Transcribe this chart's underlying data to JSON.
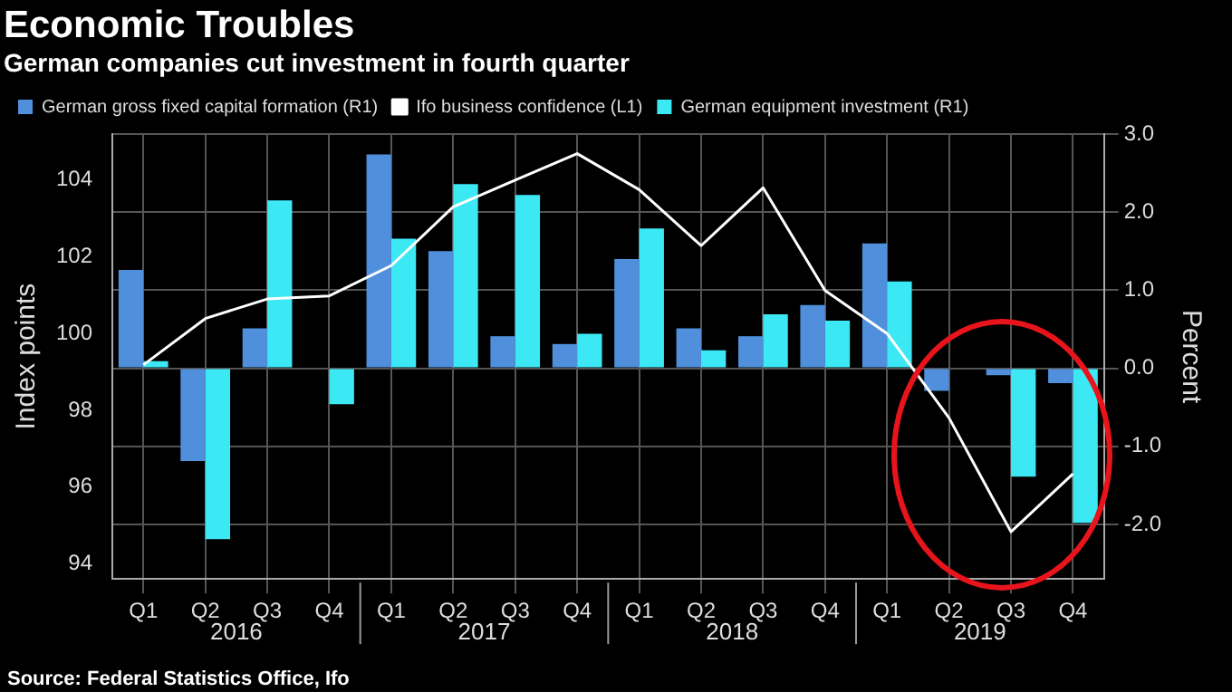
{
  "chart_data": {
    "type": "bar",
    "title": "Economic Troubles",
    "subtitle": "German companies cut investment in fourth quarter",
    "ylabel": "Index points",
    "y2label": "Percent",
    "categories": [
      "Q1",
      "Q2",
      "Q3",
      "Q4",
      "Q1",
      "Q2",
      "Q3",
      "Q4",
      "Q1",
      "Q2",
      "Q3",
      "Q4",
      "Q1",
      "Q2",
      "Q3",
      "Q4"
    ],
    "series": [
      {
        "name": "German gross fixed capital formation (R1)",
        "axis": "y2",
        "color": "#4f8fdc",
        "values": [
          1.26,
          -1.19,
          0.51,
          0.0,
          2.74,
          1.5,
          0.41,
          0.31,
          1.4,
          0.51,
          0.41,
          0.81,
          1.6,
          -0.29,
          -0.09,
          -0.19
        ]
      },
      {
        "name": "Ifo business confidence (L1)",
        "type": "line",
        "axis": "y",
        "color": "#ffffff",
        "values": [
          99.18,
          100.39,
          100.9,
          100.98,
          101.77,
          103.3,
          104.0,
          104.69,
          103.75,
          102.29,
          103.8,
          101.12,
          100.0,
          97.8,
          94.83,
          96.34
        ]
      },
      {
        "name": "German equipment investment (R1)",
        "axis": "y2",
        "color": "#3de8f5",
        "values": [
          0.09,
          -2.19,
          2.15,
          -0.46,
          1.66,
          2.36,
          2.22,
          0.44,
          1.79,
          0.23,
          0.69,
          0.61,
          1.11,
          0.0,
          -1.39,
          -1.98
        ]
      }
    ],
    "ylim": [
      93.6,
      105.2
    ],
    "yticks": [
      94,
      96,
      98,
      100,
      102,
      104
    ],
    "y2lim": [
      -2.7,
      3.0
    ],
    "y2ticks": [
      {
        "value": 3,
        "label": "3.0"
      },
      {
        "value": 2,
        "label": "2.0"
      },
      {
        "value": 1,
        "label": "1.0"
      },
      {
        "value": 0,
        "label": "0.0"
      },
      {
        "value": -1,
        "label": "-1.0"
      },
      {
        "value": -2,
        "label": "-2.0"
      }
    ],
    "grid": true,
    "legend": "top left",
    "marker": "none",
    "annotations": [
      "2016",
      "2017",
      "2018",
      "2019",
      "Source: Federal Statistics Office, Ifo"
    ]
  }
}
